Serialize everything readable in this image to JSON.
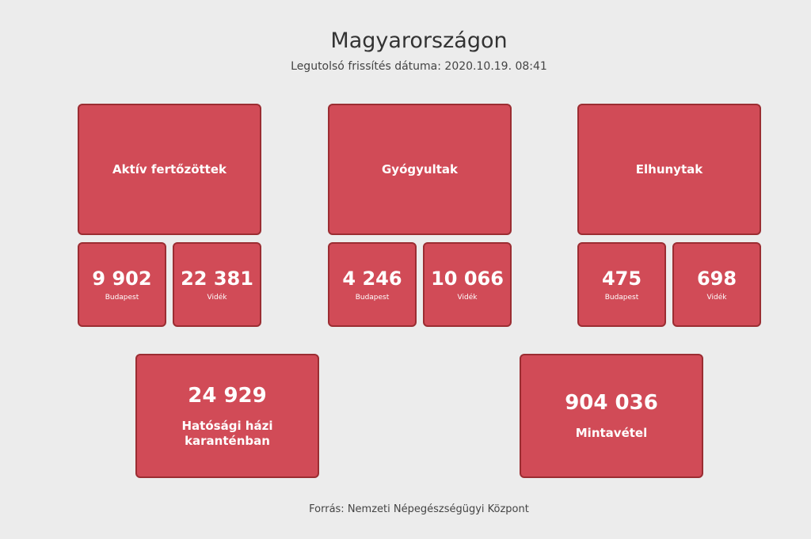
{
  "header": {
    "title": "Magyarországon",
    "subtitle": "Legutolsó frissítés dátuma: 2020.10.19. 08:41"
  },
  "groups": [
    {
      "label": "Aktív fertőzöttek",
      "budapest": {
        "value": "9 902",
        "label": "Budapest"
      },
      "videk": {
        "value": "22 381",
        "label": "Vidék"
      }
    },
    {
      "label": "Gyógyultak",
      "budapest": {
        "value": "4 246",
        "label": "Budapest"
      },
      "videk": {
        "value": "10 066",
        "label": "Vidék"
      }
    },
    {
      "label": "Elhunytak",
      "budapest": {
        "value": "475",
        "label": "Budapest"
      },
      "videk": {
        "value": "698",
        "label": "Vidék"
      }
    }
  ],
  "summary": [
    {
      "value": "24 929",
      "label": "Hatósági házi karanténban"
    },
    {
      "value": "904 036",
      "label": "Mintavétel"
    }
  ],
  "footer": {
    "source": "Forrás: Nemzeti Népegészségügyi Központ"
  },
  "colors": {
    "card_background": "#d14b57",
    "card_border": "#9b2d32",
    "page_background": "#ececec",
    "text": "#333333"
  }
}
